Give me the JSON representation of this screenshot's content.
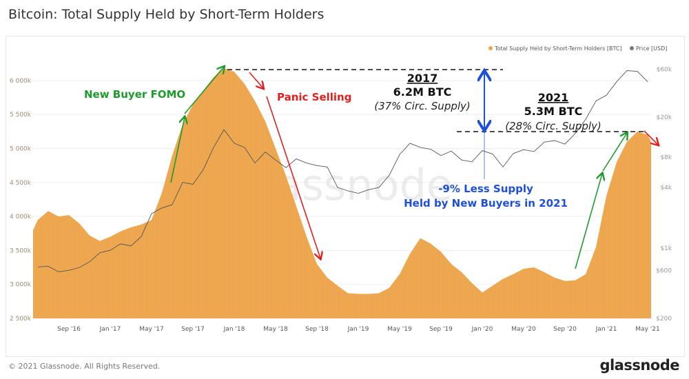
{
  "title": "Bitcoin: Total Supply Held by Short-Term Holders",
  "footer": "© 2021 Glassnode. All Rights Reserved.",
  "brand": "glassnode",
  "watermark": "glassnode",
  "colors": {
    "supply": "#eda54c",
    "price": "#555555",
    "green": "#1e9a2e",
    "red": "#e0201e",
    "blue": "#1d4fd8"
  },
  "chart_data": {
    "type": "area",
    "title": "Bitcoin: Total Supply Held by Short-Term Holders",
    "x": [
      "2016-06",
      "2016-07",
      "2016-08",
      "2016-09",
      "2016-10",
      "2016-11",
      "2016-12",
      "2017-01",
      "2017-02",
      "2017-03",
      "2017-04",
      "2017-05",
      "2017-06",
      "2017-07",
      "2017-08",
      "2017-09",
      "2017-10",
      "2017-11",
      "2017-12",
      "2018-01",
      "2018-02",
      "2018-03",
      "2018-04",
      "2018-05",
      "2018-06",
      "2018-07",
      "2018-08",
      "2018-09",
      "2018-10",
      "2018-11",
      "2018-12",
      "2019-01",
      "2019-02",
      "2019-03",
      "2019-04",
      "2019-05",
      "2019-06",
      "2019-07",
      "2019-08",
      "2019-09",
      "2019-10",
      "2019-11",
      "2019-12",
      "2020-01",
      "2020-02",
      "2020-03",
      "2020-04",
      "2020-05",
      "2020-06",
      "2020-07",
      "2020-08",
      "2020-09",
      "2020-10",
      "2020-11",
      "2020-12",
      "2021-01",
      "2021-02",
      "2021-03",
      "2021-04",
      "2021-05"
    ],
    "series": [
      {
        "name": "Total Supply Held by Short-Term Holders [BTC]",
        "axis": "left",
        "unit": "k BTC",
        "values": [
          3950,
          4080,
          4000,
          4020,
          3900,
          3720,
          3640,
          3700,
          3780,
          3840,
          3880,
          3950,
          4350,
          4900,
          5350,
          5650,
          5850,
          6050,
          6180,
          6130,
          5950,
          5700,
          5400,
          5000,
          4600,
          4150,
          3700,
          3300,
          3100,
          2980,
          2870,
          2860,
          2860,
          2870,
          2950,
          3150,
          3450,
          3680,
          3600,
          3480,
          3300,
          3180,
          3020,
          2880,
          2980,
          3080,
          3150,
          3230,
          3250,
          3180,
          3100,
          3050,
          3060,
          3150,
          3550,
          4300,
          4800,
          5100,
          5250,
          5200
        ]
      },
      {
        "name": "Price [USD]",
        "axis": "right",
        "scale": "log",
        "values": [
          650,
          660,
          580,
          600,
          640,
          730,
          900,
          950,
          1100,
          1050,
          1300,
          2200,
          2500,
          2700,
          4500,
          4300,
          6000,
          10000,
          15000,
          11000,
          10000,
          7000,
          9000,
          7500,
          6300,
          7700,
          7000,
          6600,
          6400,
          4000,
          3700,
          3500,
          3800,
          4000,
          5300,
          8500,
          11000,
          10000,
          9600,
          8300,
          9200,
          7500,
          7200,
          9300,
          8600,
          6400,
          8700,
          9500,
          9100,
          11300,
          11700,
          10800,
          13800,
          19000,
          29000,
          33000,
          45000,
          58000,
          57000,
          45000
        ]
      }
    ],
    "ylim": [
      2500,
      6300
    ],
    "yticks": [
      "2 500k",
      "3 000k",
      "3 500k",
      "4 000k",
      "4 500k",
      "5 000k",
      "5 500k",
      "6 000k"
    ],
    "yticks_values": [
      2500,
      3000,
      3500,
      4000,
      4500,
      5000,
      5500,
      6000
    ],
    "y2lim": [
      200,
      70000
    ],
    "y2ticks": [
      "$200",
      "$600",
      "$1k",
      "$4k",
      "$8k",
      "$20k",
      "$60k"
    ],
    "y2ticks_values": [
      200,
      600,
      1000,
      4000,
      8000,
      20000,
      60000
    ],
    "xticks": [
      "Sep '16",
      "Jan '17",
      "May '17",
      "Sep '17",
      "Jan '18",
      "May '18",
      "Sep '18",
      "Jan '19",
      "May '19",
      "Sep '19",
      "Jan '20",
      "May '20",
      "Sep '20",
      "Jan '21",
      "May '21"
    ],
    "xticks_values": [
      "2016-09",
      "2017-01",
      "2017-05",
      "2017-09",
      "2018-01",
      "2018-05",
      "2018-09",
      "2019-01",
      "2019-05",
      "2019-09",
      "2020-01",
      "2020-05",
      "2020-09",
      "2021-01",
      "2021-05"
    ],
    "legend": [
      "Total Supply Held by Short-Term Holders [BTC]",
      "Price [USD]"
    ],
    "legend_position": "top-right",
    "grid": true,
    "annotations": {
      "fomo": "New Buyer FOMO",
      "panic": "Panic Selling",
      "y2017": "2017",
      "v2017": "6.2M BTC",
      "p2017": "(37% Circ. Supply)",
      "y2021": "2021",
      "v2021": "5.3M BTC",
      "p2021": "(28% Circ. Supply)",
      "less1": "-9% Less Supply",
      "less2": "Held by New Buyers in 2021"
    }
  }
}
